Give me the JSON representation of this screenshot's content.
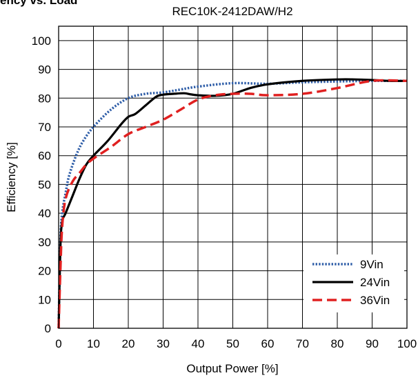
{
  "page": {
    "heading": "ency vs. Load"
  },
  "chart_data": {
    "type": "line",
    "title": "REC10K-2412DAW/H2",
    "xlabel": "Output Power [%]",
    "ylabel": "Efficiency [%]",
    "xlim": [
      0,
      100
    ],
    "ylim": [
      0,
      105
    ],
    "xticks": [
      0,
      10,
      20,
      30,
      40,
      50,
      60,
      70,
      80,
      90,
      100
    ],
    "yticks": [
      0,
      10,
      20,
      30,
      40,
      50,
      60,
      70,
      80,
      90,
      100
    ],
    "grid": true,
    "legend_position": "bottom-right",
    "series": [
      {
        "name": "9Vin",
        "color": "#2f5ea8",
        "dash": "dotted",
        "x": [
          0,
          0.5,
          1,
          2,
          3,
          5,
          7,
          10,
          15,
          20,
          25,
          30,
          35,
          40,
          50,
          60,
          70,
          80,
          90,
          100
        ],
        "y": [
          0,
          30,
          40,
          47,
          53,
          60,
          65,
          70,
          76,
          80,
          81.5,
          82,
          83,
          84,
          85.2,
          85,
          85.5,
          85.8,
          86,
          86
        ]
      },
      {
        "name": "24Vin",
        "color": "#000000",
        "dash": "solid",
        "x": [
          0,
          0.5,
          1,
          2,
          4,
          6,
          8,
          10,
          14,
          18,
          20,
          22,
          25,
          28,
          30,
          33,
          36,
          38,
          40,
          45,
          50,
          55,
          60,
          70,
          80,
          85,
          90,
          95,
          100
        ],
        "y": [
          0,
          28,
          37,
          40,
          46,
          52,
          57,
          60,
          65,
          71,
          73.5,
          74.5,
          77.5,
          80.5,
          81.2,
          81.5,
          81.7,
          81.3,
          81,
          80.8,
          81.5,
          83.5,
          84.8,
          86,
          86.5,
          86.5,
          86.3,
          86,
          86
        ]
      },
      {
        "name": "36Vin",
        "color": "#e02020",
        "dash": "dashed",
        "x": [
          0,
          0.5,
          1,
          2,
          4,
          6,
          8,
          10,
          15,
          20,
          25,
          30,
          35,
          40,
          45,
          50,
          55,
          60,
          70,
          80,
          90,
          100
        ],
        "y": [
          0,
          20,
          35,
          45,
          51,
          54,
          57,
          59,
          63,
          67.5,
          70,
          72.5,
          76,
          79.5,
          81,
          81.5,
          81.5,
          81,
          81.5,
          83.5,
          86,
          86
        ]
      }
    ]
  }
}
